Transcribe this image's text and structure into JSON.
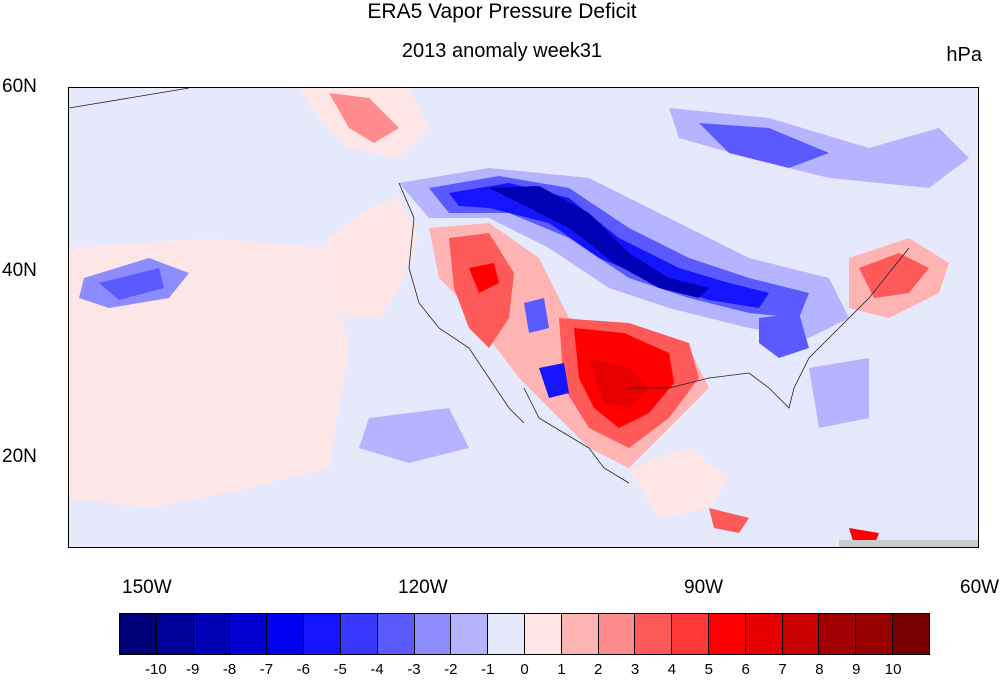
{
  "title": "ERA5 Vapor Pressure Deficit",
  "subtitle": "2013 anomaly week31",
  "units": "hPa",
  "lat_labels": [
    "60N",
    "40N",
    "20N"
  ],
  "lon_labels": [
    "150W",
    "120W",
    "90W",
    "60W"
  ],
  "colorbar": {
    "labels": [
      "-10",
      "-9",
      "-8",
      "-7",
      "-6",
      "-5",
      "-4",
      "-3",
      "-2",
      "-1",
      "0",
      "1",
      "2",
      "3",
      "4",
      "5",
      "6",
      "7",
      "8",
      "9",
      "10"
    ],
    "colors": [
      "#00007a",
      "#000096",
      "#0000b4",
      "#0000d2",
      "#0000f0",
      "#1414ff",
      "#3838ff",
      "#5a5aff",
      "#8c8cff",
      "#b4b4ff",
      "#e6e8fb",
      "#ffe6e6",
      "#ffb4b4",
      "#ff8c8c",
      "#ff5a5a",
      "#ff3838",
      "#ff0000",
      "#e60000",
      "#c80000",
      "#a00000",
      "#960000",
      "#780000"
    ]
  },
  "map": {
    "lon_range": [
      -160,
      -60
    ],
    "lat_range": [
      10,
      60
    ],
    "background_color": "#e6e8fb"
  }
}
